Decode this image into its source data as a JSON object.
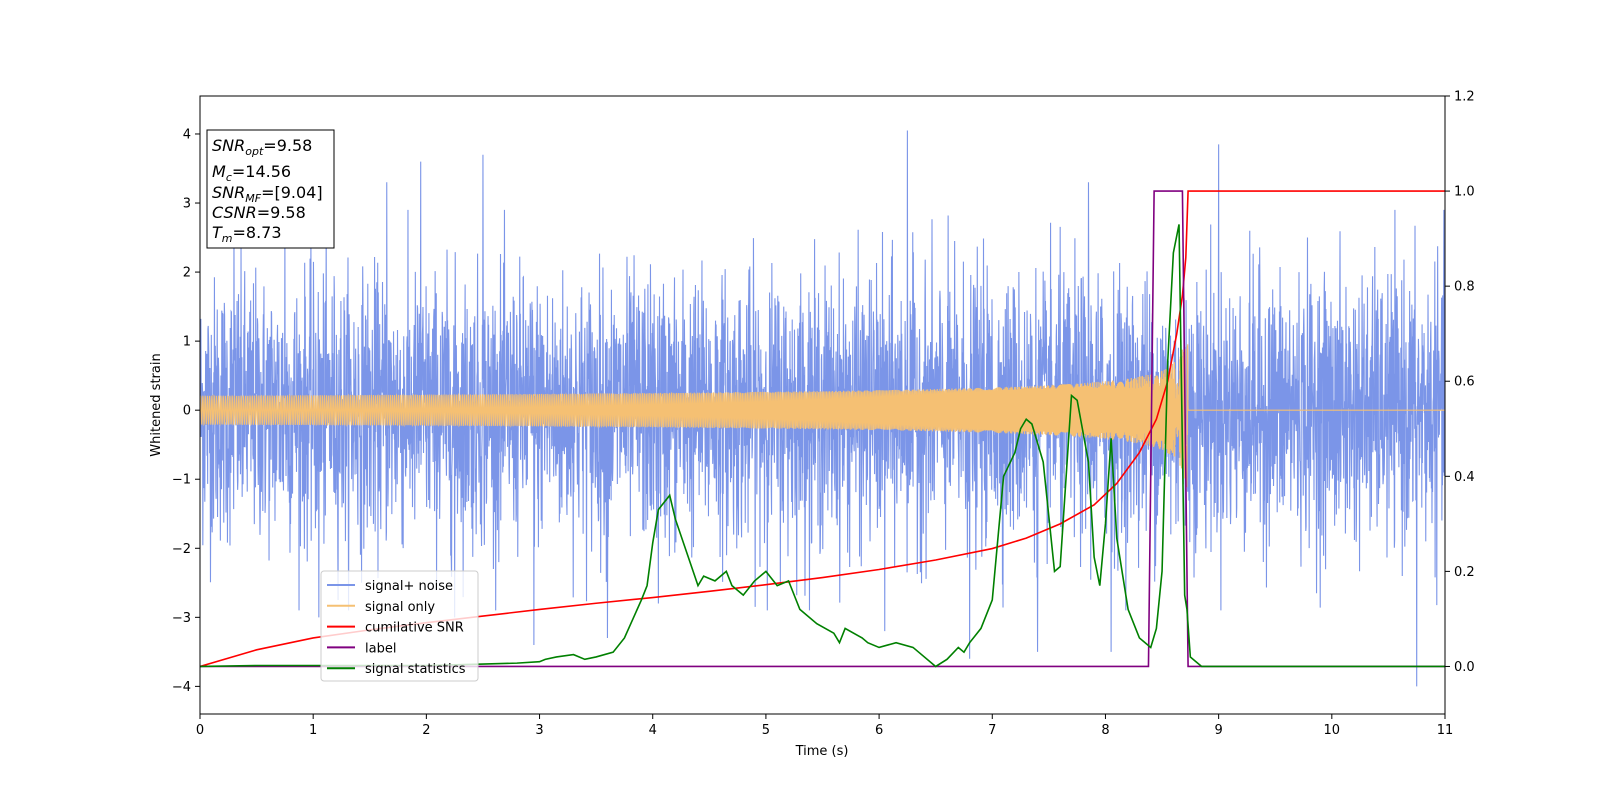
{
  "chart_data": {
    "type": "line",
    "title": "",
    "xlabel": "Time (s)",
    "ylabel": "Whitened strain",
    "xlim": [
      0,
      11
    ],
    "ylim": [
      -4.4,
      4.55
    ],
    "y2lim": [
      -0.1,
      1.2
    ],
    "grid": false,
    "legend_position": "lower-left",
    "x_ticks": [
      0,
      1,
      2,
      3,
      4,
      5,
      6,
      7,
      8,
      9,
      10,
      11
    ],
    "y_ticks": [
      -4,
      -3,
      -2,
      -1,
      0,
      1,
      2,
      3,
      4
    ],
    "y2_ticks": [
      0.0,
      0.2,
      0.4,
      0.6,
      0.8,
      1.0,
      1.2
    ],
    "y_tick_labels": [
      "−4",
      "−3",
      "−2",
      "−1",
      "0",
      "1",
      "2",
      "3",
      "4"
    ],
    "y2_tick_labels": [
      "0.0",
      "0.2",
      "0.4",
      "0.6",
      "0.8",
      "1.0",
      "1.2"
    ],
    "annotation": {
      "lines": [
        {
          "name": "SNR",
          "sub": "opt",
          "value": "=9.58"
        },
        {
          "name": "M",
          "sub": "c",
          "value": "=14.56"
        },
        {
          "name": "SNR",
          "sub": "MF",
          "value": "=[9.04]"
        },
        {
          "name": "CSNR",
          "sub": "",
          "value": "=9.58"
        },
        {
          "name": "T",
          "sub": "m",
          "value": "=8.73"
        }
      ]
    },
    "series": [
      {
        "name": "signal+ noise",
        "color": "#7b95e8",
        "axis": "left",
        "kind": "noise",
        "x_range": [
          0,
          11
        ],
        "typical_envelope": [
          -2.2,
          2.2
        ],
        "spikes": [
          [
            0.3,
            2.7
          ],
          [
            0.75,
            2.5
          ],
          [
            1.05,
            -3.0
          ],
          [
            1.65,
            3.3
          ],
          [
            1.95,
            3.6
          ],
          [
            2.25,
            -3.0
          ],
          [
            2.5,
            3.7
          ],
          [
            2.95,
            -3.4
          ],
          [
            3.6,
            -3.3
          ],
          [
            4.05,
            -2.8
          ],
          [
            6.05,
            -3.2
          ],
          [
            6.25,
            4.05
          ],
          [
            6.8,
            -3.6
          ],
          [
            7.4,
            -3.5
          ],
          [
            7.85,
            3.3
          ],
          [
            8.05,
            -3.5
          ],
          [
            9.0,
            3.85
          ],
          [
            10.75,
            -4.0
          ]
        ]
      },
      {
        "name": "signal only",
        "color": "#f5c073",
        "axis": "left",
        "kind": "chirp",
        "merger_time": 8.73,
        "amplitude_at_merger": 1.15
      },
      {
        "name": "cumilative SNR",
        "color": "#ff0000",
        "axis": "right",
        "x": [
          0,
          0.5,
          1,
          1.5,
          2,
          2.5,
          3,
          3.5,
          4,
          4.5,
          5,
          5.5,
          6,
          6.5,
          7,
          7.3,
          7.6,
          7.9,
          8.1,
          8.3,
          8.45,
          8.55,
          8.63,
          8.68,
          8.71,
          8.73,
          11
        ],
        "y": [
          0.0,
          0.035,
          0.06,
          0.077,
          0.092,
          0.106,
          0.12,
          0.133,
          0.145,
          0.158,
          0.172,
          0.187,
          0.204,
          0.224,
          0.248,
          0.27,
          0.3,
          0.34,
          0.385,
          0.45,
          0.52,
          0.6,
          0.7,
          0.78,
          0.86,
          1.0,
          1.0
        ]
      },
      {
        "name": "label",
        "color": "#800080",
        "axis": "right",
        "x": [
          0,
          8.38,
          8.43,
          8.68,
          8.73,
          11
        ],
        "y": [
          0,
          0,
          1,
          1,
          0,
          0
        ]
      },
      {
        "name": "signal statistics",
        "color": "#008000",
        "axis": "right",
        "x": [
          0,
          0.5,
          1,
          1.5,
          2,
          2.5,
          2.8,
          3.0,
          3.05,
          3.15,
          3.3,
          3.4,
          3.5,
          3.65,
          3.75,
          3.9,
          3.95,
          4.0,
          4.05,
          4.15,
          4.2,
          4.3,
          4.4,
          4.45,
          4.55,
          4.65,
          4.7,
          4.8,
          4.9,
          5.0,
          5.1,
          5.2,
          5.3,
          5.45,
          5.6,
          5.65,
          5.7,
          5.85,
          5.9,
          6.0,
          6.15,
          6.3,
          6.35,
          6.5,
          6.6,
          6.7,
          6.75,
          6.8,
          6.9,
          7.0,
          7.1,
          7.2,
          7.25,
          7.3,
          7.35,
          7.45,
          7.55,
          7.6,
          7.65,
          7.7,
          7.75,
          7.85,
          7.9,
          7.95,
          8.0,
          8.05,
          8.1,
          8.2,
          8.3,
          8.4,
          8.45,
          8.5,
          8.55,
          8.6,
          8.65,
          8.7,
          8.72,
          8.75,
          8.8,
          8.85,
          8.9,
          9.0,
          10,
          11
        ],
        "y": [
          0.0,
          0.002,
          0.002,
          0.002,
          0.002,
          0.005,
          0.007,
          0.01,
          0.015,
          0.02,
          0.025,
          0.015,
          0.02,
          0.03,
          0.06,
          0.14,
          0.17,
          0.26,
          0.33,
          0.36,
          0.31,
          0.24,
          0.17,
          0.19,
          0.18,
          0.2,
          0.17,
          0.15,
          0.18,
          0.2,
          0.17,
          0.18,
          0.12,
          0.09,
          0.07,
          0.05,
          0.08,
          0.06,
          0.05,
          0.04,
          0.05,
          0.04,
          0.03,
          0.0,
          0.015,
          0.04,
          0.03,
          0.05,
          0.08,
          0.14,
          0.4,
          0.45,
          0.5,
          0.52,
          0.51,
          0.43,
          0.2,
          0.21,
          0.39,
          0.57,
          0.56,
          0.43,
          0.23,
          0.17,
          0.3,
          0.48,
          0.27,
          0.12,
          0.06,
          0.04,
          0.08,
          0.2,
          0.64,
          0.87,
          0.93,
          0.15,
          0.12,
          0.02,
          0.01,
          0.0,
          0.0,
          0.0,
          0.0,
          0.0
        ]
      }
    ]
  }
}
